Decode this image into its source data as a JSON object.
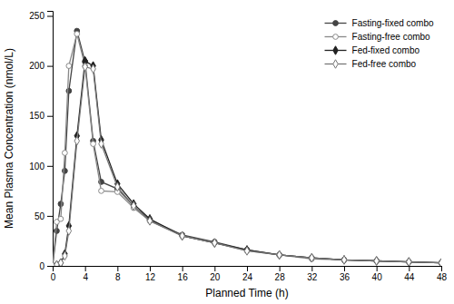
{
  "chart_data": {
    "type": "line",
    "xlabel": "Planned Time (h)",
    "ylabel": "Mean Plasma Concentration (nmol/L)",
    "x": [
      0,
      0.5,
      1,
      1.5,
      2,
      3,
      4,
      5,
      6,
      8,
      10,
      12,
      16,
      20,
      24,
      28,
      32,
      36,
      40,
      44,
      48
    ],
    "xlim": [
      0,
      48
    ],
    "ylim": [
      0,
      255
    ],
    "xticks": [
      0,
      4,
      8,
      12,
      16,
      20,
      24,
      28,
      32,
      36,
      40,
      44,
      48
    ],
    "yticks": [
      0,
      50,
      100,
      150,
      200,
      250
    ],
    "legend": "upper right",
    "grid": false,
    "series": [
      {
        "name": "Fasting-fixed combo",
        "color": "#444444",
        "marker": "circle",
        "values": [
          0,
          35,
          62,
          95,
          175,
          235,
          204,
          125,
          84,
          77,
          60,
          46,
          31,
          24,
          16,
          11,
          8,
          6,
          5,
          4,
          3
        ]
      },
      {
        "name": "Fasting-free combo",
        "color": "#888888",
        "marker": "circle-open",
        "values": [
          0,
          44,
          47,
          113,
          200,
          232,
          200,
          122,
          75,
          74,
          58,
          45,
          30,
          23,
          15,
          11,
          7,
          6,
          5,
          4,
          3
        ]
      },
      {
        "name": "Fed-fixed combo",
        "color": "#222222",
        "marker": "diamond",
        "values": [
          0,
          1,
          3,
          12,
          40,
          130,
          205,
          200,
          126,
          82,
          62,
          47,
          30,
          23,
          16,
          11,
          8,
          6,
          5,
          4,
          3
        ]
      },
      {
        "name": "Fed-free combo",
        "color": "#777777",
        "marker": "diamond-open",
        "values": [
          0,
          1,
          3,
          10,
          35,
          125,
          199,
          197,
          122,
          79,
          60,
          45,
          30,
          23,
          15,
          11,
          8,
          6,
          5,
          4,
          3
        ]
      }
    ]
  }
}
